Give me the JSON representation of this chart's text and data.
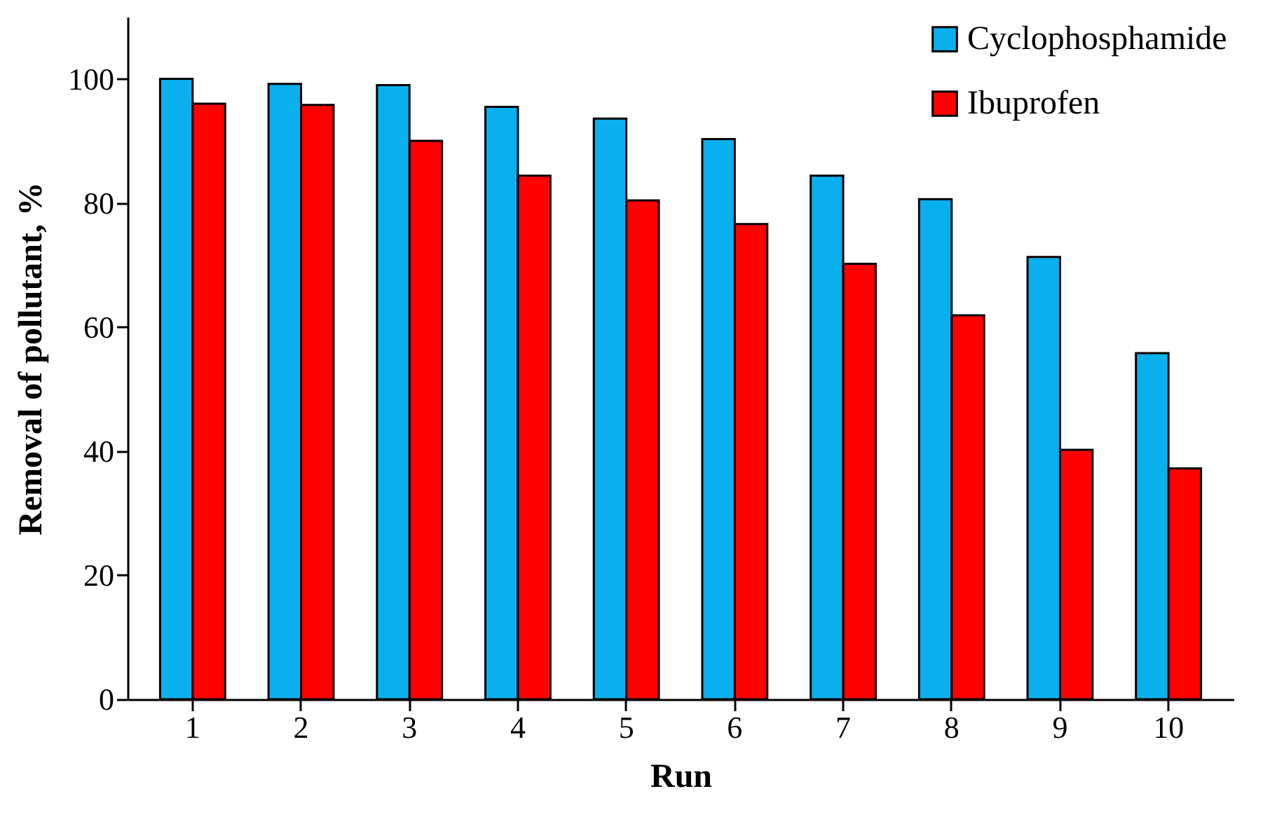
{
  "chart_data": {
    "type": "bar",
    "xlabel": "Run",
    "ylabel": "Removal of pollutant, %",
    "categories": [
      "1",
      "2",
      "3",
      "4",
      "5",
      "6",
      "7",
      "8",
      "9",
      "10"
    ],
    "series": [
      {
        "name": "Cyclophosphamide",
        "color": "#0ab0ee",
        "values": [
          100,
          99.2,
          99.0,
          95.5,
          93.6,
          90.3,
          84.4,
          80.6,
          71.3,
          55.8
        ]
      },
      {
        "name": "Ibuprofen",
        "color": "#ff0000",
        "values": [
          96.0,
          95.8,
          90.0,
          84.4,
          80.4,
          76.6,
          70.2,
          61.9,
          40.2,
          37.2
        ]
      }
    ],
    "ylim": [
      0,
      110
    ],
    "yticks": [
      0,
      20,
      40,
      60,
      80,
      100
    ],
    "grid": false,
    "legend": "top right"
  }
}
